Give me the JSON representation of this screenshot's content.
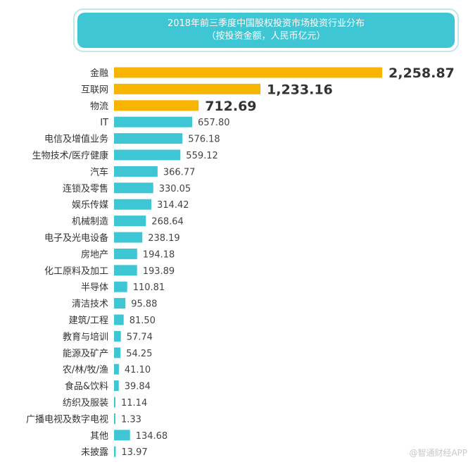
{
  "chart_data": {
    "type": "bar",
    "orientation": "horizontal",
    "title": "2018年前三季度中国股权投资市场投资行业分布",
    "subtitle": "（按投资金额，人民币亿元）",
    "categories": [
      "金融",
      "互联网",
      "物流",
      "IT",
      "电信及增值业务",
      "生物技术/医疗健康",
      "汽车",
      "连锁及零售",
      "娱乐传媒",
      "机械制造",
      "电子及光电设备",
      "房地产",
      "化工原料及加工",
      "半导体",
      "清洁技术",
      "建筑/工程",
      "教育与培训",
      "能源及矿产",
      "农/林/牧/渔",
      "食品&饮料",
      "纺织及服装",
      "广播电视及数字电视",
      "其他",
      "未披露"
    ],
    "values": [
      2258.87,
      1233.16,
      712.69,
      657.8,
      576.18,
      559.12,
      366.77,
      330.05,
      314.42,
      268.64,
      238.19,
      194.18,
      193.89,
      110.81,
      95.88,
      81.5,
      57.74,
      54.25,
      41.1,
      39.84,
      11.14,
      1.33,
      134.68,
      13.97
    ],
    "value_labels": [
      "2,258.87",
      "1,233.16",
      "712.69",
      "657.80",
      "576.18",
      "559.12",
      "366.77",
      "330.05",
      "314.42",
      "268.64",
      "238.19",
      "194.18",
      "193.89",
      "110.81",
      "95.88",
      "81.50",
      "57.74",
      "54.25",
      "41.10",
      "39.84",
      "11.14",
      "1.33",
      "134.68",
      "13.97"
    ],
    "highlight_top": 3,
    "colors": {
      "highlight": "#f7b400",
      "normal": "#3ec6d4"
    },
    "grid": false,
    "legend": "none"
  },
  "watermark": "@智通财经APP"
}
